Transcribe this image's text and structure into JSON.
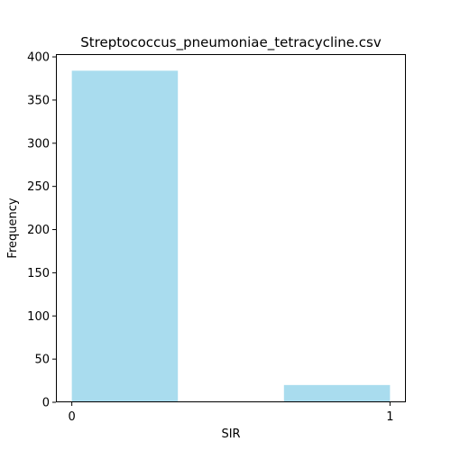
{
  "chart_data": {
    "type": "bar",
    "title": "Streptococcus_pneumoniae_tetracycline.csv",
    "xlabel": "SIR",
    "ylabel": "Frequency",
    "bars": [
      {
        "x_start": 0,
        "x_end": 0.3333,
        "value": 384
      },
      {
        "x_start": 0.6667,
        "x_end": 1,
        "value": 20
      }
    ],
    "xlim": [
      -0.05,
      1.05
    ],
    "ylim": [
      0,
      403.2
    ],
    "xticks": [
      {
        "value": 0,
        "label": "0"
      },
      {
        "value": 1,
        "label": "1"
      }
    ],
    "yticks": [
      {
        "value": 0,
        "label": "0"
      },
      {
        "value": 50,
        "label": "50"
      },
      {
        "value": 100,
        "label": "100"
      },
      {
        "value": 150,
        "label": "150"
      },
      {
        "value": 200,
        "label": "200"
      },
      {
        "value": 250,
        "label": "250"
      },
      {
        "value": 300,
        "label": "300"
      },
      {
        "value": 350,
        "label": "350"
      },
      {
        "value": 400,
        "label": "400"
      }
    ],
    "bar_color": "#a9dcee",
    "grid": false,
    "legend": "none"
  }
}
